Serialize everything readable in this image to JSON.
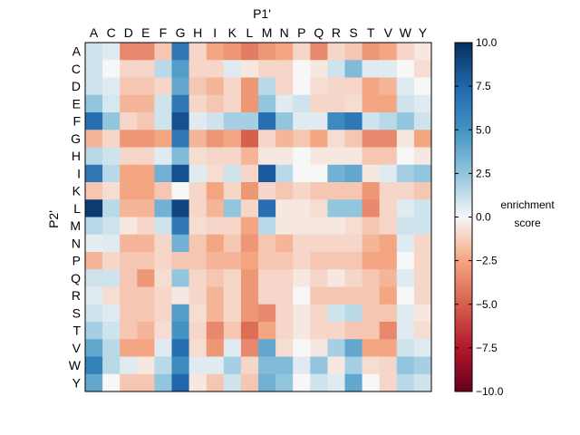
{
  "chart_data": {
    "type": "heatmap",
    "xlabel": "P1'",
    "ylabel": "P2'",
    "x_categories": [
      "A",
      "C",
      "D",
      "E",
      "F",
      "G",
      "H",
      "I",
      "K",
      "L",
      "M",
      "N",
      "P",
      "Q",
      "R",
      "S",
      "T",
      "V",
      "W",
      "Y"
    ],
    "y_categories": [
      "A",
      "C",
      "D",
      "E",
      "F",
      "G",
      "H",
      "I",
      "K",
      "L",
      "M",
      "N",
      "P",
      "Q",
      "R",
      "S",
      "T",
      "V",
      "W",
      "Y"
    ],
    "values": [
      [
        1.0,
        0.6,
        -3.5,
        -3.5,
        -1.5,
        6.5,
        -1.0,
        -2.5,
        -3.0,
        -4.0,
        -3.0,
        -2.5,
        -1.0,
        -3.5,
        -1.0,
        -1.5,
        -3.0,
        -2.5,
        -1.0,
        -0.5
      ],
      [
        1.0,
        0.0,
        -1.0,
        -1.0,
        1.5,
        4.5,
        -1.0,
        -1.0,
        0.6,
        -0.5,
        -1.0,
        -1.0,
        0.0,
        -0.5,
        1.0,
        3.0,
        0.6,
        0.6,
        0.0,
        -0.8
      ],
      [
        1.0,
        0.6,
        -1.5,
        -1.5,
        -1.0,
        4.0,
        -1.5,
        -2.0,
        -1.0,
        -3.0,
        1.5,
        -1.0,
        0.0,
        -0.8,
        -1.0,
        -1.0,
        -2.5,
        -2.0,
        0.6,
        0.0
      ],
      [
        2.5,
        0.8,
        -2.0,
        -2.0,
        1.0,
        6.5,
        -1.0,
        -1.5,
        -1.0,
        -3.0,
        2.5,
        0.6,
        1.0,
        -1.0,
        -1.0,
        -0.8,
        -2.5,
        -2.5,
        1.0,
        0.6
      ],
      [
        7.0,
        2.5,
        -1.0,
        -1.5,
        1.0,
        8.5,
        0.6,
        1.0,
        2.0,
        2.0,
        7.0,
        2.5,
        0.6,
        0.6,
        5.5,
        6.5,
        1.0,
        1.5,
        2.5,
        1.0
      ],
      [
        -2.0,
        -1.0,
        -3.0,
        -3.0,
        -2.5,
        6.5,
        -2.0,
        -3.0,
        -2.5,
        -5.0,
        -1.0,
        -2.0,
        -1.5,
        -2.5,
        -0.8,
        -1.5,
        -3.5,
        -3.5,
        -0.5,
        -2.5
      ],
      [
        1.5,
        1.0,
        -1.0,
        -1.0,
        0.6,
        3.0,
        -0.8,
        -1.0,
        -1.0,
        -2.0,
        -0.5,
        -0.5,
        0.0,
        -0.5,
        -0.5,
        -0.5,
        -1.5,
        -1.5,
        0.0,
        -0.5
      ],
      [
        6.5,
        1.5,
        -2.5,
        -2.5,
        3.5,
        8.5,
        0.6,
        -0.8,
        1.0,
        -1.0,
        8.0,
        1.5,
        0.0,
        0.0,
        3.5,
        4.0,
        -0.5,
        0.6,
        2.0,
        2.5
      ],
      [
        -1.5,
        -0.8,
        -2.5,
        -2.5,
        -1.5,
        0.0,
        -1.0,
        -2.5,
        -1.0,
        -3.0,
        -1.0,
        -1.5,
        -1.0,
        -1.5,
        -1.5,
        -1.5,
        -3.0,
        -1.0,
        -1.0,
        -1.5
      ],
      [
        9.5,
        1.5,
        -2.0,
        -2.0,
        3.5,
        9.0,
        -1.0,
        -2.0,
        2.5,
        -1.0,
        7.0,
        -0.5,
        -0.5,
        -0.8,
        2.5,
        2.5,
        -3.5,
        -1.0,
        0.6,
        1.0
      ],
      [
        1.5,
        1.0,
        -0.5,
        -1.0,
        1.0,
        6.5,
        -0.8,
        -1.0,
        -1.0,
        -2.5,
        1.5,
        -0.5,
        -0.5,
        -0.5,
        -0.5,
        -0.8,
        -1.5,
        -1.0,
        1.0,
        1.0
      ],
      [
        0.5,
        0.6,
        -2.0,
        -2.0,
        -1.0,
        3.5,
        -1.5,
        -2.5,
        -1.5,
        -3.0,
        -1.5,
        -2.0,
        -1.0,
        -1.0,
        -1.0,
        -1.0,
        -2.0,
        -2.5,
        0.6,
        -1.0
      ],
      [
        -2.0,
        -1.0,
        -1.5,
        -1.5,
        -1.0,
        -1.5,
        -1.5,
        -2.0,
        -2.0,
        -2.5,
        -1.5,
        -1.5,
        -1.0,
        -1.5,
        -1.5,
        -1.5,
        -2.5,
        -2.5,
        0.0,
        -1.0
      ],
      [
        1.0,
        1.0,
        -1.5,
        -3.0,
        -0.8,
        2.5,
        -1.0,
        -1.5,
        -1.0,
        -3.0,
        -1.0,
        -1.0,
        -0.5,
        -1.0,
        -0.5,
        -1.0,
        -1.5,
        -2.0,
        0.6,
        -1.0
      ],
      [
        0.6,
        -0.8,
        -1.5,
        -1.5,
        -1.0,
        -0.5,
        -1.0,
        -2.0,
        -1.0,
        -3.0,
        -1.0,
        -1.0,
        0.0,
        -1.5,
        -1.5,
        -1.5,
        -1.5,
        -2.5,
        0.0,
        -1.0
      ],
      [
        1.0,
        0.6,
        -1.5,
        -1.5,
        -1.0,
        4.5,
        -0.8,
        -2.0,
        -1.0,
        -3.0,
        -3.5,
        -1.0,
        -0.5,
        -1.0,
        1.0,
        1.5,
        -1.5,
        -1.5,
        0.6,
        -0.5
      ],
      [
        2.0,
        1.0,
        -1.5,
        -2.0,
        -0.8,
        5.0,
        -1.0,
        -3.5,
        -1.5,
        -4.5,
        -2.5,
        -1.0,
        -0.5,
        -1.0,
        -1.0,
        -1.5,
        -1.5,
        -3.5,
        0.6,
        -0.8
      ],
      [
        4.0,
        1.5,
        -2.5,
        -2.5,
        0.6,
        7.0,
        -0.8,
        -3.0,
        0.6,
        -3.5,
        4.0,
        -0.8,
        0.0,
        -0.5,
        2.0,
        4.0,
        -2.5,
        -2.5,
        1.0,
        0.6
      ],
      [
        6.0,
        1.5,
        0.6,
        -0.5,
        1.5,
        5.5,
        0.6,
        0.6,
        2.0,
        -1.0,
        3.0,
        3.0,
        0.6,
        2.5,
        -0.5,
        2.0,
        -0.8,
        -1.0,
        2.5,
        2.0
      ],
      [
        4.0,
        0.0,
        -1.5,
        -1.5,
        2.5,
        7.5,
        -0.5,
        -1.5,
        1.0,
        -1.5,
        3.5,
        2.5,
        0.0,
        1.0,
        0.6,
        4.0,
        0.0,
        -1.0,
        1.5,
        1.0
      ]
    ],
    "vmin": -10,
    "vmax": 10,
    "colormap": "RdBu",
    "colorbar_label": "enrichment score",
    "colorbar_ticks": [
      "10.0",
      "7.5",
      "5.0",
      "2.5",
      "0.0",
      "−2.5",
      "−5.0",
      "−7.5",
      "−10.0"
    ],
    "colorbar_tick_values": [
      10,
      7.5,
      5,
      2.5,
      0,
      -2.5,
      -5,
      -7.5,
      -10
    ]
  }
}
